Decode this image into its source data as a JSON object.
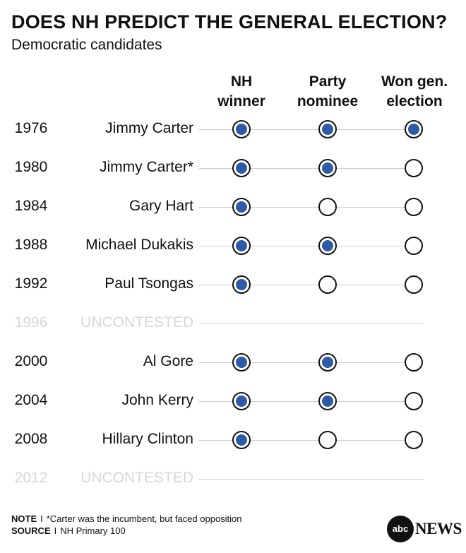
{
  "title": "DOES NH PREDICT THE GENERAL ELECTION?",
  "subtitle": "Democratic candidates",
  "chart_data": {
    "type": "table",
    "columns": [
      {
        "line1": "NH",
        "line2": "winner"
      },
      {
        "line1": "Party",
        "line2": "nominee"
      },
      {
        "line1": "Won gen.",
        "line2": "election"
      }
    ],
    "rows": [
      {
        "year": "1976",
        "candidate": "Jimmy Carter",
        "values": [
          true,
          true,
          true
        ]
      },
      {
        "year": "1980",
        "candidate": "Jimmy Carter*",
        "values": [
          true,
          true,
          false
        ]
      },
      {
        "year": "1984",
        "candidate": "Gary Hart",
        "values": [
          true,
          false,
          false
        ]
      },
      {
        "year": "1988",
        "candidate": "Michael Dukakis",
        "values": [
          true,
          true,
          false
        ]
      },
      {
        "year": "1992",
        "candidate": "Paul Tsongas",
        "values": [
          true,
          false,
          false
        ]
      },
      {
        "year": "1996",
        "candidate": "UNCONTESTED",
        "uncontested": true
      },
      {
        "year": "2000",
        "candidate": "Al Gore",
        "values": [
          true,
          true,
          false
        ]
      },
      {
        "year": "2004",
        "candidate": "John Kerry",
        "values": [
          true,
          true,
          false
        ]
      },
      {
        "year": "2008",
        "candidate": "Hillary Clinton",
        "values": [
          true,
          false,
          false
        ]
      },
      {
        "year": "2012",
        "candidate": "UNCONTESTED",
        "uncontested": true
      }
    ],
    "colors": {
      "filled": "#2f5aa6",
      "muted": "#d7d7d7"
    }
  },
  "footer": {
    "note_label": "NOTE",
    "note_text": "*Carter was the incumbent, but faced opposition",
    "source_label": "SOURCE",
    "source_text": "NH Primary 100",
    "separator": "I"
  },
  "logo": {
    "mark": "abc",
    "text": "NEWS"
  }
}
